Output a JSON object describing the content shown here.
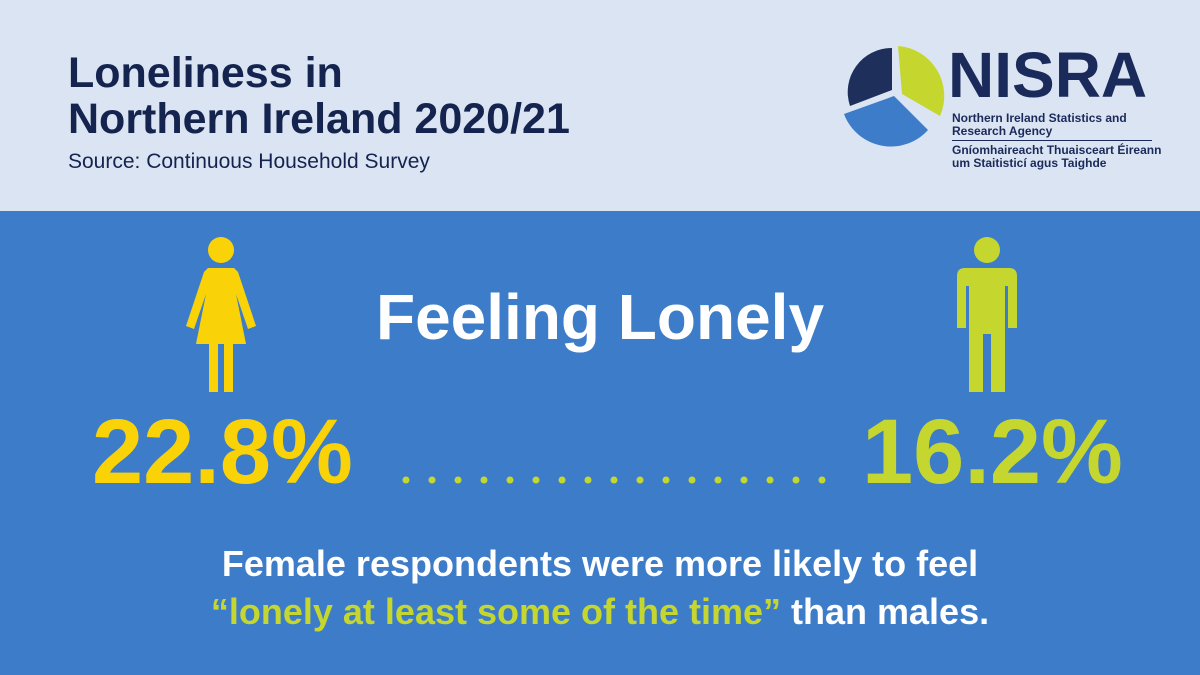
{
  "header": {
    "title_line1": "Loneliness in",
    "title_line2": "Northern Ireland 2020/21",
    "source": "Source: Continuous Household Survey"
  },
  "logo": {
    "name": "NISRA",
    "subtitle_en": "Northern Ireland Statistics and Research Agency",
    "subtitle_ga": "Gníomhaireacht Thuaisceart Éireann um Staitisticí agus Taighde"
  },
  "main": {
    "heading": "Feeling Lonely",
    "female": {
      "value": "22.8%",
      "icon": "female-person-icon"
    },
    "male": {
      "value": "16.2%",
      "icon": "male-person-icon"
    },
    "caption_line1": "Female respondents were more likely to feel",
    "caption_highlight": "“lonely at least some of the time”",
    "caption_end": " than males."
  },
  "colors": {
    "header_bg": "#dbe4f2",
    "main_bg": "#3d7cc9",
    "navy": "#14244f",
    "female_yellow": "#f9d308",
    "male_green": "#c5d62f"
  }
}
